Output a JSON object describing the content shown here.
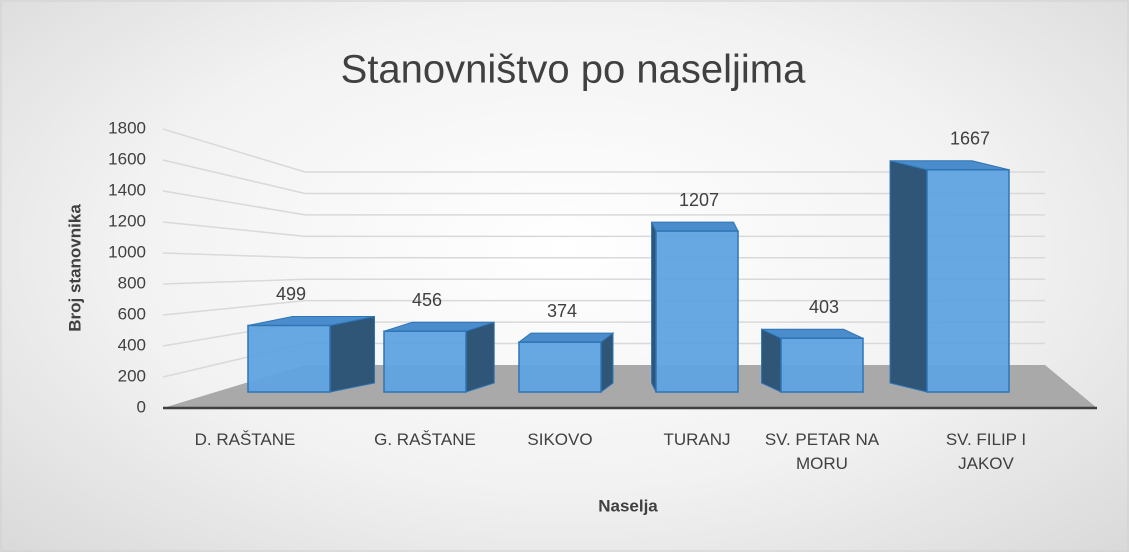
{
  "chart_data": {
    "type": "bar3d",
    "title": "Stanovništvo po naseljima",
    "categories": [
      "D. RAŠTANE",
      "G. RAŠTANE",
      "SIKOVO",
      "TURANJ",
      "SV. PETAR NA MORU",
      "SV. FILIP I JAKOV"
    ],
    "values": [
      499,
      456,
      374,
      1207,
      403,
      1667
    ],
    "color": "#5fa2e0",
    "ylim": [
      0,
      1800
    ],
    "yticks": [
      0,
      200,
      400,
      600,
      800,
      1000,
      1200,
      1400,
      1600,
      1800
    ],
    "grid": true,
    "ylabel": "Broj stanovnika",
    "xlabel": "Naselja"
  }
}
